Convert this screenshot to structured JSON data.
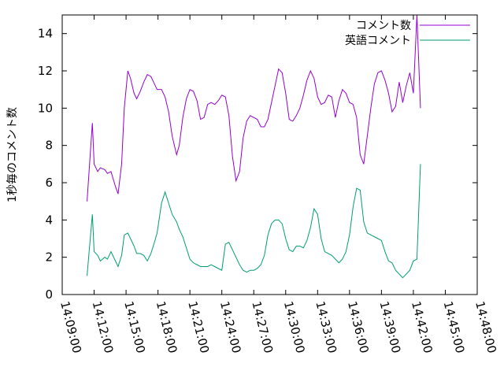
{
  "chart_data": {
    "type": "line",
    "ylabel": "1秒毎のコメント数",
    "xlabel": "",
    "ylim": [
      0,
      15
    ],
    "xlim": [
      "14:09:00",
      "14:48:00"
    ],
    "x_ticks": [
      "14:09:00",
      "14:12:00",
      "14:15:00",
      "14:18:00",
      "14:21:00",
      "14:24:00",
      "14:27:00",
      "14:30:00",
      "14:33:00",
      "14:36:00",
      "14:39:00",
      "14:42:00",
      "14:45:00",
      "14:48:00"
    ],
    "y_ticks": [
      0,
      2,
      4,
      6,
      8,
      10,
      12,
      14
    ],
    "legend_position": "top-right",
    "grid": false,
    "series": [
      {
        "name": "コメント数",
        "color": "#9400d3",
        "points": [
          [
            "14:11:20",
            5.0
          ],
          [
            "14:11:50",
            9.2
          ],
          [
            "14:12:00",
            7.0
          ],
          [
            "14:12:20",
            6.6
          ],
          [
            "14:12:35",
            6.8
          ],
          [
            "14:13:00",
            6.7
          ],
          [
            "14:13:15",
            6.5
          ],
          [
            "14:13:35",
            6.6
          ],
          [
            "14:14:00",
            5.8
          ],
          [
            "14:14:15",
            5.4
          ],
          [
            "14:14:35",
            7.0
          ],
          [
            "14:14:50",
            10.0
          ],
          [
            "14:15:10",
            12.0
          ],
          [
            "14:15:25",
            11.6
          ],
          [
            "14:15:45",
            10.8
          ],
          [
            "14:16:00",
            10.5
          ],
          [
            "14:16:20",
            10.9
          ],
          [
            "14:16:40",
            11.4
          ],
          [
            "14:17:00",
            11.8
          ],
          [
            "14:17:20",
            11.7
          ],
          [
            "14:17:40",
            11.3
          ],
          [
            "14:17:55",
            11.0
          ],
          [
            "14:18:20",
            11.0
          ],
          [
            "14:18:40",
            10.6
          ],
          [
            "14:19:00",
            9.8
          ],
          [
            "14:19:20",
            8.5
          ],
          [
            "14:19:45",
            7.5
          ],
          [
            "14:20:00",
            8.0
          ],
          [
            "14:20:20",
            9.5
          ],
          [
            "14:20:40",
            10.5
          ],
          [
            "14:21:00",
            11.0
          ],
          [
            "14:21:20",
            10.9
          ],
          [
            "14:21:40",
            10.4
          ],
          [
            "14:22:00",
            9.4
          ],
          [
            "14:22:20",
            9.5
          ],
          [
            "14:22:40",
            10.2
          ],
          [
            "14:23:00",
            10.3
          ],
          [
            "14:23:20",
            10.2
          ],
          [
            "14:23:40",
            10.4
          ],
          [
            "14:24:00",
            10.7
          ],
          [
            "14:24:20",
            10.6
          ],
          [
            "14:24:40",
            9.6
          ],
          [
            "14:25:00",
            7.4
          ],
          [
            "14:25:20",
            6.1
          ],
          [
            "14:25:40",
            6.6
          ],
          [
            "14:26:00",
            8.4
          ],
          [
            "14:26:20",
            9.3
          ],
          [
            "14:26:40",
            9.6
          ],
          [
            "14:27:00",
            9.5
          ],
          [
            "14:27:20",
            9.4
          ],
          [
            "14:27:40",
            9.0
          ],
          [
            "14:28:00",
            9.0
          ],
          [
            "14:28:20",
            9.4
          ],
          [
            "14:28:40",
            10.3
          ],
          [
            "14:29:00",
            11.2
          ],
          [
            "14:29:20",
            12.1
          ],
          [
            "14:29:40",
            11.9
          ],
          [
            "14:30:00",
            10.8
          ],
          [
            "14:30:20",
            9.4
          ],
          [
            "14:30:40",
            9.3
          ],
          [
            "14:31:00",
            9.6
          ],
          [
            "14:31:20",
            10.0
          ],
          [
            "14:31:40",
            10.7
          ],
          [
            "14:32:00",
            11.5
          ],
          [
            "14:32:20",
            12.0
          ],
          [
            "14:32:40",
            11.6
          ],
          [
            "14:33:00",
            10.6
          ],
          [
            "14:33:20",
            10.2
          ],
          [
            "14:33:40",
            10.3
          ],
          [
            "14:34:00",
            10.7
          ],
          [
            "14:34:20",
            10.6
          ],
          [
            "14:34:40",
            9.5
          ],
          [
            "14:35:00",
            10.4
          ],
          [
            "14:35:20",
            11.0
          ],
          [
            "14:35:40",
            10.8
          ],
          [
            "14:36:00",
            10.3
          ],
          [
            "14:36:20",
            10.2
          ],
          [
            "14:36:40",
            9.5
          ],
          [
            "14:37:00",
            7.5
          ],
          [
            "14:37:20",
            7.0
          ],
          [
            "14:37:40",
            8.5
          ],
          [
            "14:38:00",
            10.0
          ],
          [
            "14:38:20",
            11.3
          ],
          [
            "14:38:40",
            11.9
          ],
          [
            "14:39:00",
            12.0
          ],
          [
            "14:39:20",
            11.5
          ],
          [
            "14:39:40",
            10.8
          ],
          [
            "14:40:00",
            9.8
          ],
          [
            "14:40:20",
            10.1
          ],
          [
            "14:40:40",
            11.4
          ],
          [
            "14:41:00",
            10.3
          ],
          [
            "14:41:20",
            11.2
          ],
          [
            "14:41:40",
            11.9
          ],
          [
            "14:42:00",
            10.8
          ],
          [
            "14:42:20",
            15.0
          ],
          [
            "14:42:40",
            10.0
          ]
        ]
      },
      {
        "name": "英語コメント",
        "color": "#009e73",
        "points": [
          [
            "14:11:20",
            1.0
          ],
          [
            "14:11:50",
            4.3
          ],
          [
            "14:12:00",
            2.3
          ],
          [
            "14:12:20",
            2.1
          ],
          [
            "14:12:35",
            1.8
          ],
          [
            "14:13:00",
            2.0
          ],
          [
            "14:13:15",
            1.9
          ],
          [
            "14:13:35",
            2.3
          ],
          [
            "14:14:00",
            1.8
          ],
          [
            "14:14:15",
            1.5
          ],
          [
            "14:14:35",
            2.1
          ],
          [
            "14:14:50",
            3.2
          ],
          [
            "14:15:10",
            3.3
          ],
          [
            "14:15:25",
            3.0
          ],
          [
            "14:15:45",
            2.6
          ],
          [
            "14:16:00",
            2.2
          ],
          [
            "14:16:20",
            2.2
          ],
          [
            "14:16:40",
            2.1
          ],
          [
            "14:17:00",
            1.8
          ],
          [
            "14:17:20",
            2.2
          ],
          [
            "14:17:40",
            2.8
          ],
          [
            "14:17:55",
            3.3
          ],
          [
            "14:18:20",
            4.9
          ],
          [
            "14:18:40",
            5.5
          ],
          [
            "14:19:00",
            4.9
          ],
          [
            "14:19:20",
            4.3
          ],
          [
            "14:19:45",
            3.9
          ],
          [
            "14:20:00",
            3.5
          ],
          [
            "14:20:20",
            3.1
          ],
          [
            "14:20:40",
            2.5
          ],
          [
            "14:21:00",
            1.9
          ],
          [
            "14:21:20",
            1.7
          ],
          [
            "14:21:40",
            1.6
          ],
          [
            "14:22:00",
            1.5
          ],
          [
            "14:22:20",
            1.5
          ],
          [
            "14:22:40",
            1.5
          ],
          [
            "14:23:00",
            1.6
          ],
          [
            "14:23:20",
            1.5
          ],
          [
            "14:23:40",
            1.4
          ],
          [
            "14:24:00",
            1.3
          ],
          [
            "14:24:20",
            2.7
          ],
          [
            "14:24:40",
            2.8
          ],
          [
            "14:25:00",
            2.4
          ],
          [
            "14:25:20",
            2.0
          ],
          [
            "14:25:40",
            1.6
          ],
          [
            "14:26:00",
            1.3
          ],
          [
            "14:26:20",
            1.2
          ],
          [
            "14:26:40",
            1.3
          ],
          [
            "14:27:00",
            1.3
          ],
          [
            "14:27:20",
            1.4
          ],
          [
            "14:27:40",
            1.6
          ],
          [
            "14:28:00",
            2.1
          ],
          [
            "14:28:20",
            3.2
          ],
          [
            "14:28:40",
            3.8
          ],
          [
            "14:29:00",
            4.0
          ],
          [
            "14:29:20",
            4.0
          ],
          [
            "14:29:40",
            3.8
          ],
          [
            "14:30:00",
            3.0
          ],
          [
            "14:30:20",
            2.4
          ],
          [
            "14:30:40",
            2.3
          ],
          [
            "14:31:00",
            2.6
          ],
          [
            "14:31:20",
            2.6
          ],
          [
            "14:31:40",
            2.5
          ],
          [
            "14:32:00",
            2.9
          ],
          [
            "14:32:20",
            3.6
          ],
          [
            "14:32:40",
            4.6
          ],
          [
            "14:33:00",
            4.3
          ],
          [
            "14:33:20",
            3.0
          ],
          [
            "14:33:40",
            2.3
          ],
          [
            "14:34:00",
            2.2
          ],
          [
            "14:34:20",
            2.1
          ],
          [
            "14:34:40",
            1.9
          ],
          [
            "14:35:00",
            1.7
          ],
          [
            "14:35:20",
            1.9
          ],
          [
            "14:35:40",
            2.3
          ],
          [
            "14:36:00",
            3.2
          ],
          [
            "14:36:20",
            4.7
          ],
          [
            "14:36:40",
            5.7
          ],
          [
            "14:37:00",
            5.6
          ],
          [
            "14:37:20",
            3.9
          ],
          [
            "14:37:40",
            3.3
          ],
          [
            "14:38:00",
            3.2
          ],
          [
            "14:38:20",
            3.1
          ],
          [
            "14:38:40",
            3.0
          ],
          [
            "14:39:00",
            2.9
          ],
          [
            "14:39:20",
            2.3
          ],
          [
            "14:39:40",
            1.8
          ],
          [
            "14:40:00",
            1.7
          ],
          [
            "14:40:20",
            1.3
          ],
          [
            "14:40:40",
            1.1
          ],
          [
            "14:41:00",
            0.9
          ],
          [
            "14:41:20",
            1.1
          ],
          [
            "14:41:40",
            1.3
          ],
          [
            "14:42:00",
            1.8
          ],
          [
            "14:42:20",
            1.9
          ],
          [
            "14:42:40",
            7.0
          ]
        ]
      }
    ]
  }
}
